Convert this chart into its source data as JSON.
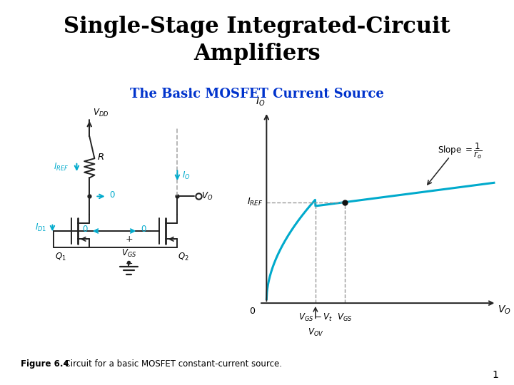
{
  "title": "Single-Stage Integrated-Circuit\nAmplifiers",
  "subtitle": "The Basic MOSFET Current Source",
  "subtitle_color": "#0033CC",
  "title_fontsize": 22,
  "subtitle_fontsize": 13,
  "figure_bg": "#FFFFFF",
  "curve_color": "#00AACC",
  "curve_linewidth": 2.2,
  "circuit_color": "#00AACC",
  "dashed_color": "#999999",
  "figure_caption_bold": "Figure 6.4",
  "figure_caption_rest": "  Circuit for a basic MOSFET constant-current source.",
  "page_number": "1"
}
